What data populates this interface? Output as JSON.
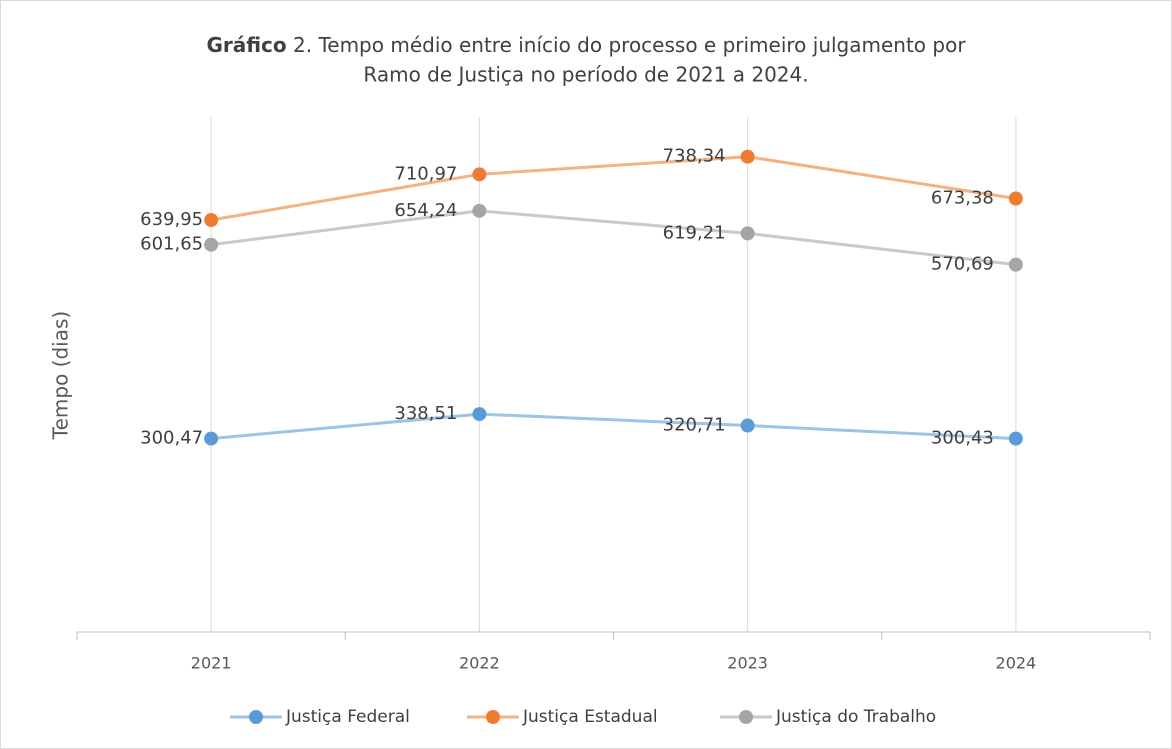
{
  "chart_data": {
    "type": "line",
    "title": [
      "Gráfico",
      "2. Tempo médio entre início do processo e primeiro julgamento por",
      "Ramo de Justiça no período de 2021 a 2024."
    ],
    "y_label": "Tempo (dias)",
    "categories": [
      "2021",
      "2022",
      "2023",
      "2024"
    ],
    "ylim": [
      0,
      800
    ],
    "grid": true,
    "legend": "bottom",
    "series": [
      {
        "name": "Justiça Federal",
        "color": "#5b9bd5",
        "line_color": "#9dc3e6",
        "values": [
          300.47,
          338.51,
          320.71,
          300.43
        ],
        "value_labels": [
          "300,47",
          "338,51",
          "320,71",
          "300,43"
        ]
      },
      {
        "name": "Justiça Estadual",
        "color": "#ed7d31",
        "line_color": "#f4b183",
        "values": [
          639.95,
          710.97,
          738.34,
          673.38
        ],
        "value_labels": [
          "639,95",
          "710,97",
          "738,34",
          "673,38"
        ]
      },
      {
        "name": "Justiça do Trabalho",
        "color": "#a5a5a5",
        "line_color": "#c9c9c9",
        "values": [
          601.65,
          654.24,
          619.21,
          570.69
        ],
        "value_labels": [
          "601,65",
          "654,24",
          "619,21",
          "570,69"
        ]
      }
    ]
  }
}
